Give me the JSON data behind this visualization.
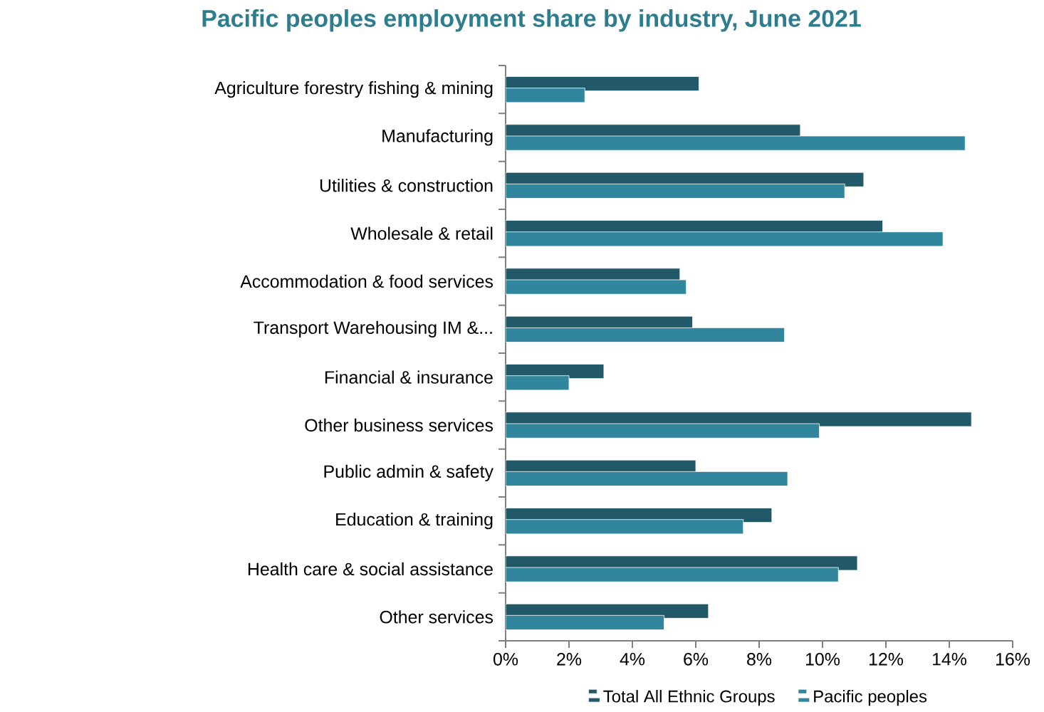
{
  "chart_data": {
    "type": "bar",
    "orientation": "horizontal",
    "title": "Pacific peoples employment share by industry, June 2021",
    "categories": [
      "Agriculture forestry fishing & mining",
      "Manufacturing",
      "Utilities & construction",
      "Wholesale & retail",
      "Accommodation & food services",
      "Transport Warehousing IM &...",
      "Financial & insurance",
      "Other business services",
      "Public admin & safety",
      "Education & training",
      "Health care & social assistance",
      "Other services"
    ],
    "series": [
      {
        "name": "Total All Ethnic Groups",
        "color": "#215968",
        "values": [
          6.1,
          9.3,
          11.3,
          11.9,
          5.5,
          5.9,
          3.1,
          14.7,
          6.0,
          8.4,
          11.1,
          6.4
        ]
      },
      {
        "name": "Pacific peoples",
        "color": "#31859c",
        "values": [
          2.5,
          14.5,
          10.7,
          13.8,
          5.7,
          8.8,
          2.0,
          9.9,
          8.9,
          7.5,
          10.5,
          5.0
        ]
      }
    ],
    "xlim": [
      0,
      16
    ],
    "xticks": [
      {
        "value": 0,
        "label": "0%"
      },
      {
        "value": 2,
        "label": "2%"
      },
      {
        "value": 4,
        "label": "4%"
      },
      {
        "value": 6,
        "label": "6%"
      },
      {
        "value": 8,
        "label": "8%"
      },
      {
        "value": 10,
        "label": "10%"
      },
      {
        "value": 12,
        "label": "12%"
      },
      {
        "value": 14,
        "label": "14%"
      },
      {
        "value": 16,
        "label": "16%"
      }
    ],
    "grid": false,
    "legend": "bottom"
  }
}
